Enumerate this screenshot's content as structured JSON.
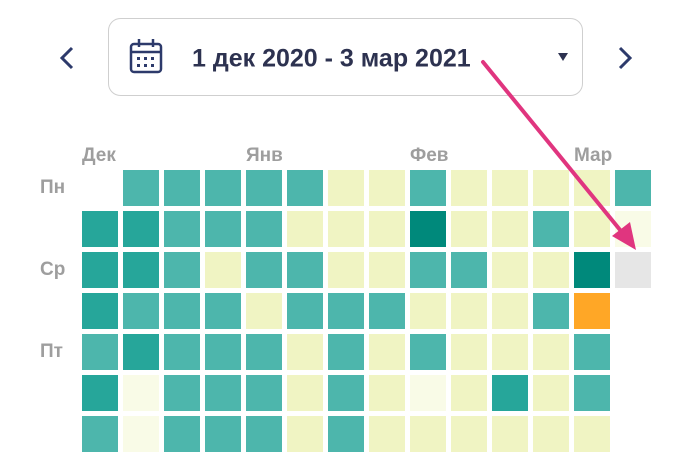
{
  "date_range": {
    "label": "1 дек 2020 - 3 мар 2021"
  },
  "heatmap": {
    "months": [
      "Дек",
      "Янв",
      "Фев",
      "Мар"
    ],
    "weekdays": [
      "Пн",
      "Ср",
      "Пт"
    ],
    "weeks": [
      [
        null,
        "#26a69a",
        "#26a69a",
        "#26a69a",
        "#4db6ac",
        "#26a69a",
        "#4db6ac"
      ],
      [
        "#4db6ac",
        "#26a69a",
        "#26a69a",
        "#4db6ac",
        "#26a69a",
        "#f9fbe7",
        "#f9fbe7"
      ],
      [
        "#4db6ac",
        "#4db6ac",
        "#4db6ac",
        "#4db6ac",
        "#4db6ac",
        "#4db6ac",
        "#4db6ac"
      ],
      [
        "#4db6ac",
        "#4db6ac",
        "#f0f4c3",
        "#4db6ac",
        "#4db6ac",
        "#4db6ac",
        "#4db6ac"
      ],
      [
        "#4db6ac",
        "#4db6ac",
        "#4db6ac",
        "#f0f4c3",
        "#4db6ac",
        "#4db6ac",
        "#4db6ac"
      ],
      [
        "#4db6ac",
        "#f0f4c3",
        "#4db6ac",
        "#4db6ac",
        "#f0f4c3",
        "#f0f4c3",
        "#f0f4c3"
      ],
      [
        "#f0f4c3",
        "#f0f4c3",
        "#f0f4c3",
        "#4db6ac",
        "#4db6ac",
        "#4db6ac",
        "#4db6ac"
      ],
      [
        "#f0f4c3",
        "#f0f4c3",
        "#f0f4c3",
        "#4db6ac",
        "#f0f4c3",
        "#f0f4c3",
        "#f0f4c3"
      ],
      [
        "#4db6ac",
        "#00897b",
        "#4db6ac",
        "#f0f4c3",
        "#4db6ac",
        "#f9fbe7",
        "#f0f4c3"
      ],
      [
        "#f0f4c3",
        "#f0f4c3",
        "#4db6ac",
        "#f0f4c3",
        "#f0f4c3",
        "#f0f4c3",
        "#f0f4c3"
      ],
      [
        "#f0f4c3",
        "#f0f4c3",
        "#f0f4c3",
        "#f0f4c3",
        "#f0f4c3",
        "#26a69a",
        "#f0f4c3"
      ],
      [
        "#f0f4c3",
        "#4db6ac",
        "#f0f4c3",
        "#4db6ac",
        "#f0f4c3",
        "#f0f4c3",
        "#f0f4c3"
      ],
      [
        "#f0f4c3",
        "#f0f4c3",
        "#00897b",
        "#ffa726",
        "#4db6ac",
        "#4db6ac",
        "#f0f4c3"
      ],
      [
        "#4db6ac",
        "#f9fbe7",
        "#e6e6e6",
        null,
        null,
        null,
        null
      ]
    ]
  }
}
